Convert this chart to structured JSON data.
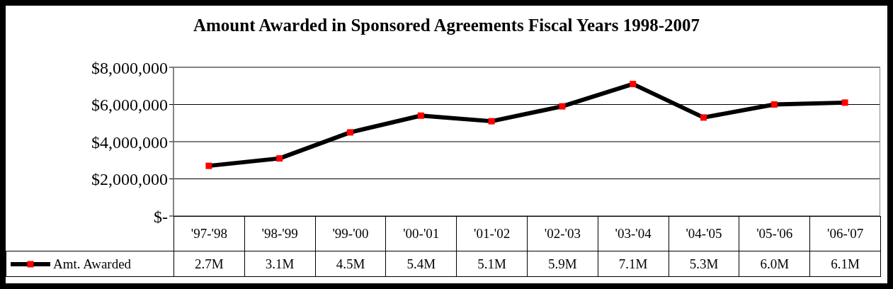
{
  "chart_data": {
    "type": "line",
    "title": "Amount Awarded in Sponsored Agreements Fiscal Years 1998-2007",
    "categories": [
      "'97-'98",
      "'98-'99",
      "'99-'00",
      "'00-'01",
      "'01-'02",
      "'02-'03",
      "'03-'04",
      "'04-'05",
      "'05-'06",
      "'06-'07"
    ],
    "series": [
      {
        "name": "Amt. Awarded",
        "color": "#000000",
        "values": [
          2700000,
          3100000,
          4500000,
          5400000,
          5100000,
          5900000,
          7100000,
          5300000,
          6000000,
          6100000
        ],
        "value_labels": [
          "2.7M",
          "3.1M",
          "4.5M",
          "5.4M",
          "5.1M",
          "5.9M",
          "7.1M",
          "5.3M",
          "6.0M",
          "6.1M"
        ]
      }
    ],
    "ylim": [
      0,
      8000000
    ],
    "yticks": [
      {
        "value": 0,
        "label": "$-"
      },
      {
        "value": 2000000,
        "label": "$2,000,000"
      },
      {
        "value": 4000000,
        "label": "$4,000,000"
      },
      {
        "value": 6000000,
        "label": "$6,000,000"
      },
      {
        "value": 8000000,
        "label": "$8,000,000"
      }
    ],
    "grid": "y",
    "legend": "bottom",
    "marker": "square",
    "line_style": "solid"
  }
}
